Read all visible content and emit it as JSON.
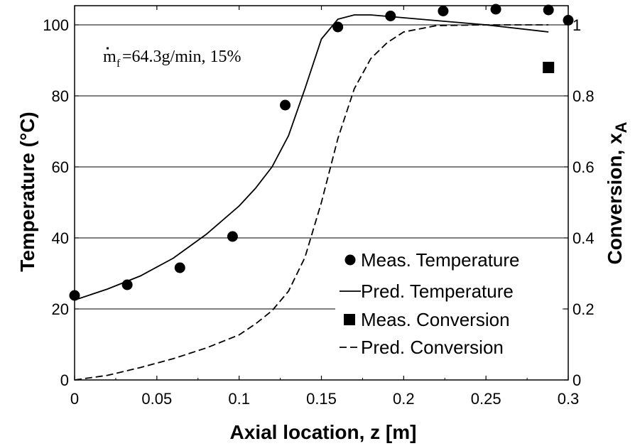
{
  "chart_data": {
    "type": "line",
    "annotation": "=64.3g/min, 15%",
    "annotation_symbol": "m",
    "annotation_subscript": "f",
    "xlabel": "Axial location, z  [m]",
    "ylabel_left": "Temperature (°C)",
    "ylabel_right_main": "Conversion, x",
    "ylabel_right_sub": "A",
    "xlim": [
      0,
      0.3
    ],
    "ylim_left": [
      0,
      100
    ],
    "ylim_right": [
      0,
      1
    ],
    "x_ticks": [
      0,
      0.05,
      0.1,
      0.15,
      0.2,
      0.25,
      0.3
    ],
    "x_tick_labels": [
      "0",
      "0.05",
      "0.1",
      "0.15",
      "0.2",
      "0.25",
      "0.3"
    ],
    "y_left_ticks": [
      0,
      20,
      40,
      60,
      80,
      100
    ],
    "y_left_tick_labels": [
      "0",
      "20",
      "40",
      "60",
      "80",
      "100"
    ],
    "y_right_ticks": [
      0,
      0.2,
      0.4,
      0.6,
      0.8,
      1
    ],
    "y_right_tick_labels": [
      "0",
      "0.2",
      "0.4",
      "0.6",
      "0.8",
      "1"
    ],
    "grid": "horizontal",
    "legend_position": "bottom-right",
    "series": [
      {
        "name": "Meas. Temperature",
        "kind": "marker-circle",
        "axis": "left",
        "x": [
          0,
          0.032,
          0.064,
          0.096,
          0.128,
          0.16,
          0.192,
          0.224,
          0.256,
          0.288,
          0.3
        ],
        "y": [
          23.8,
          26.8,
          31.6,
          40.4,
          77.4,
          99.4,
          102.5,
          103.9,
          104.4,
          104.2,
          101.3
        ]
      },
      {
        "name": "Pred. Temperature",
        "kind": "line-solid",
        "axis": "left",
        "x": [
          0,
          0.02,
          0.04,
          0.06,
          0.08,
          0.1,
          0.11,
          0.12,
          0.13,
          0.14,
          0.15,
          0.16,
          0.17,
          0.18,
          0.2,
          0.25,
          0.288
        ],
        "y": [
          22.5,
          25.6,
          29.3,
          34.3,
          41.0,
          49.0,
          54.0,
          60.0,
          68.8,
          82.0,
          96.0,
          101.6,
          102.8,
          102.8,
          102.0,
          100.0,
          98.0
        ]
      },
      {
        "name": "Meas. Conversion",
        "kind": "marker-square",
        "axis": "right",
        "x": [
          0.288
        ],
        "y": [
          0.88
        ]
      },
      {
        "name": "Pred. Conversion",
        "kind": "line-dashed",
        "axis": "right",
        "x": [
          0,
          0.02,
          0.04,
          0.06,
          0.08,
          0.1,
          0.11,
          0.12,
          0.13,
          0.14,
          0.15,
          0.16,
          0.17,
          0.18,
          0.19,
          0.2,
          0.22,
          0.25,
          0.288
        ],
        "y": [
          0,
          0.013,
          0.035,
          0.06,
          0.09,
          0.127,
          0.158,
          0.195,
          0.25,
          0.345,
          0.5,
          0.68,
          0.82,
          0.905,
          0.95,
          0.98,
          0.998,
          1.0,
          1.0
        ]
      }
    ]
  }
}
